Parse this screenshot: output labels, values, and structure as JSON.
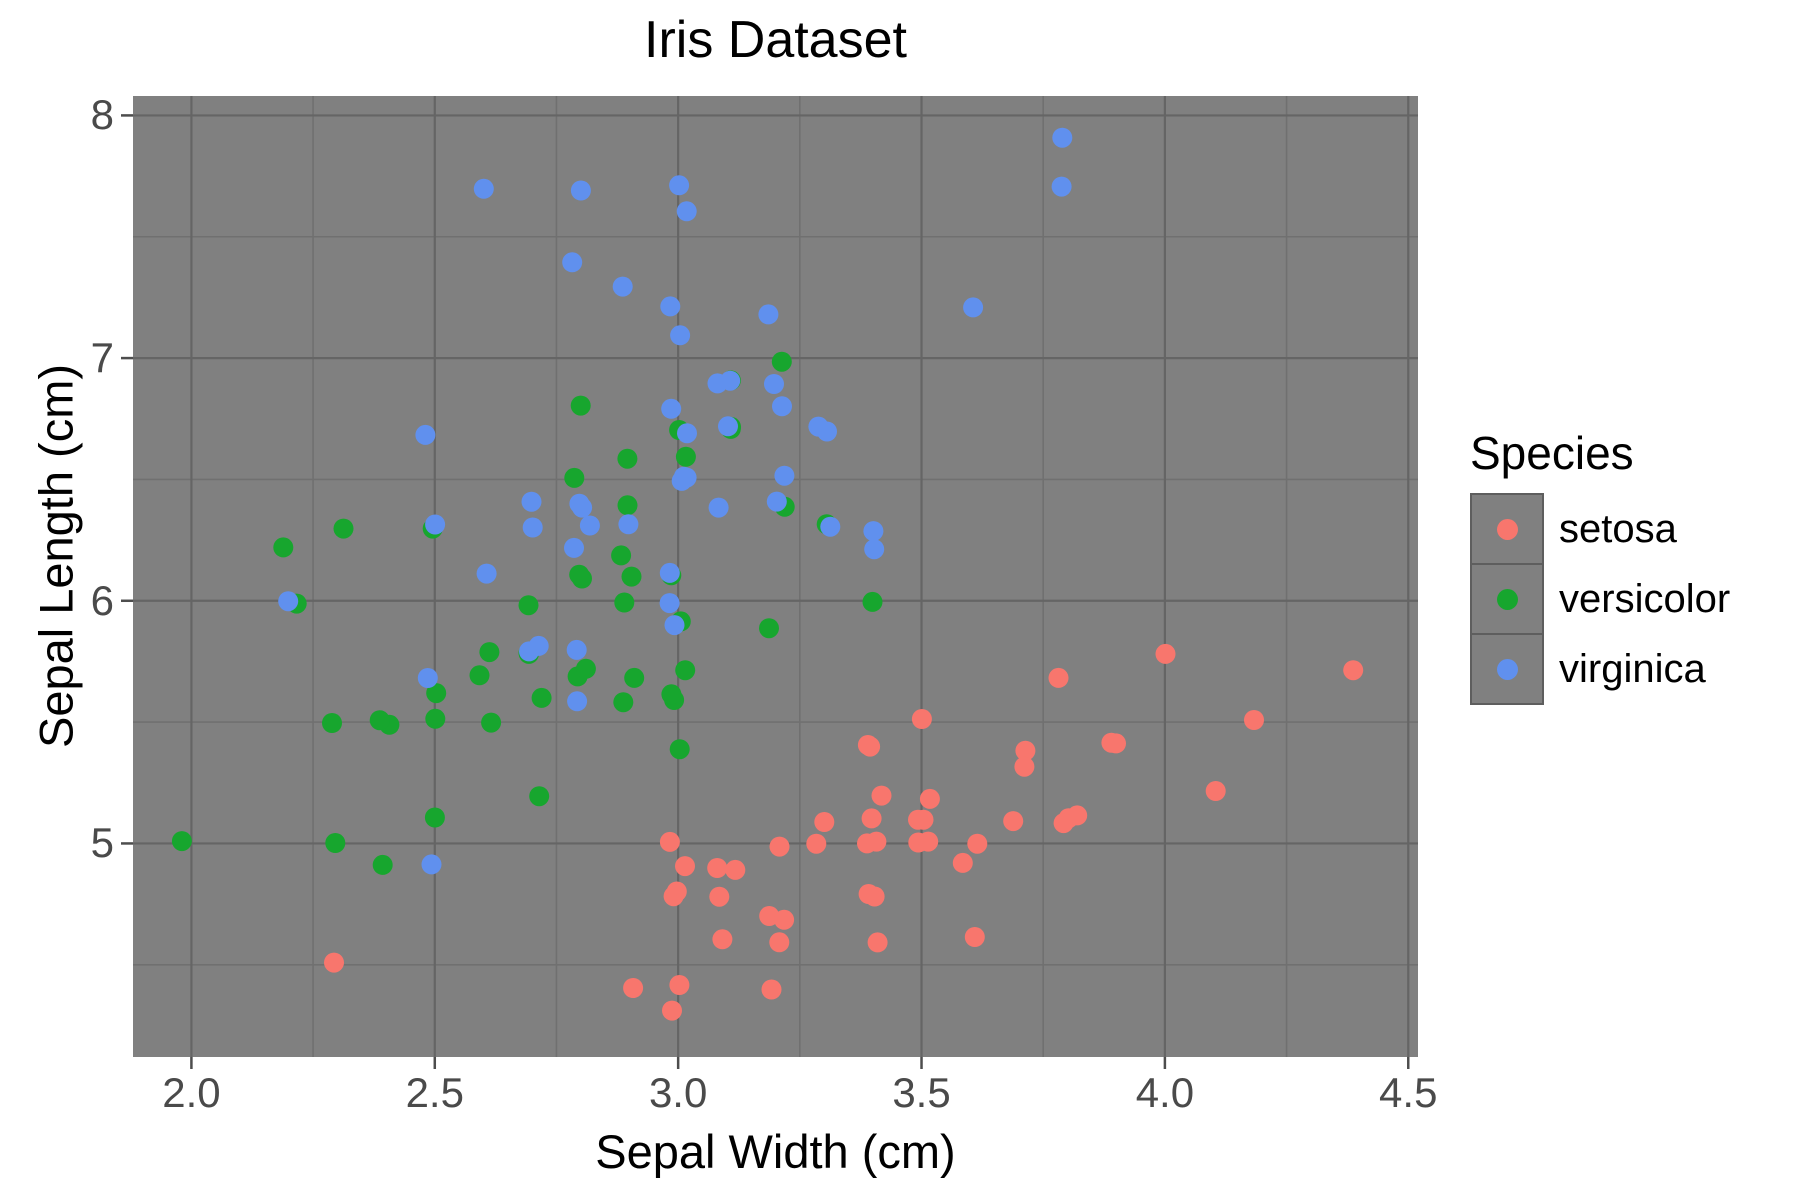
{
  "chart_data": {
    "type": "scatter",
    "title": "Iris Dataset",
    "xlabel": "Sepal Width (cm)",
    "ylabel": "Sepal Length (cm)",
    "xlim": [
      1.88,
      4.52
    ],
    "ylim": [
      4.12,
      8.08
    ],
    "x_ticks": {
      "values": [
        2.0,
        2.5,
        3.0,
        3.5,
        4.0,
        4.5
      ],
      "labels": [
        "2.0",
        "2.5",
        "3.0",
        "3.5",
        "4.0",
        "4.5"
      ]
    },
    "y_ticks": {
      "values": [
        5,
        6,
        7,
        8
      ],
      "labels": [
        "5",
        "6",
        "7",
        "8"
      ]
    },
    "minor_x": [
      2.25,
      2.75,
      3.25,
      3.75,
      4.25
    ],
    "minor_y": [
      4.5,
      5.5,
      6.5,
      7.5
    ],
    "grid": "major+minor",
    "legend": {
      "title": "Species",
      "position": "right"
    },
    "series": [
      {
        "name": "setosa",
        "color": "#F8766D",
        "x": [
          3.5,
          3.0,
          3.2,
          3.1,
          3.6,
          3.9,
          3.4,
          3.4,
          2.9,
          3.1,
          3.7,
          3.4,
          3.0,
          3.0,
          4.0,
          4.4,
          3.9,
          3.5,
          3.8,
          3.8,
          3.4,
          3.7,
          3.6,
          3.3,
          3.4,
          3.0,
          3.4,
          3.5,
          3.4,
          3.2,
          3.1,
          3.4,
          4.1,
          4.2,
          3.1,
          3.2,
          3.5,
          3.6,
          3.0,
          3.4,
          3.5,
          2.3,
          3.2,
          3.5,
          3.8,
          3.0,
          3.8,
          3.2,
          3.7,
          3.3
        ],
        "y": [
          5.1,
          4.9,
          4.7,
          4.6,
          5.0,
          5.4,
          4.6,
          5.0,
          4.4,
          4.9,
          5.4,
          4.8,
          4.8,
          4.3,
          5.8,
          5.7,
          5.4,
          5.1,
          5.7,
          5.1,
          5.4,
          5.1,
          4.6,
          5.1,
          4.8,
          5.0,
          5.0,
          5.2,
          5.2,
          4.7,
          4.8,
          5.4,
          5.2,
          5.5,
          4.9,
          5.0,
          5.5,
          4.9,
          4.4,
          5.1,
          5.0,
          4.5,
          4.4,
          5.0,
          5.1,
          4.8,
          5.1,
          4.6,
          5.3,
          5.0
        ]
      },
      {
        "name": "versicolor",
        "color": "#17A62E",
        "x": [
          3.2,
          3.2,
          3.1,
          2.3,
          2.8,
          2.8,
          3.3,
          2.4,
          2.9,
          2.7,
          2.0,
          3.0,
          2.2,
          2.9,
          2.9,
          3.1,
          3.0,
          2.7,
          2.2,
          2.5,
          3.2,
          2.8,
          2.5,
          2.8,
          2.9,
          3.0,
          2.8,
          3.0,
          2.9,
          2.6,
          2.4,
          2.4,
          2.7,
          2.7,
          3.0,
          3.4,
          3.1,
          2.3,
          3.0,
          2.5,
          2.6,
          3.0,
          2.6,
          2.3,
          2.7,
          3.0,
          2.9,
          2.9,
          2.5,
          2.8
        ],
        "y": [
          7.0,
          6.4,
          6.9,
          5.5,
          6.5,
          5.7,
          6.3,
          4.9,
          6.6,
          5.2,
          5.0,
          5.9,
          6.0,
          6.1,
          5.6,
          6.7,
          5.6,
          5.8,
          6.2,
          5.6,
          5.9,
          6.1,
          6.3,
          6.1,
          6.4,
          6.6,
          6.8,
          6.7,
          6.0,
          5.7,
          5.5,
          5.5,
          5.8,
          6.0,
          5.4,
          6.0,
          6.7,
          6.3,
          5.6,
          5.5,
          5.5,
          6.1,
          5.8,
          5.0,
          5.6,
          5.7,
          5.7,
          6.2,
          5.1,
          5.7
        ]
      },
      {
        "name": "virginica",
        "color": "#6090EE",
        "x": [
          3.3,
          2.7,
          3.0,
          2.9,
          3.0,
          3.0,
          2.5,
          2.9,
          2.5,
          3.6,
          3.2,
          2.7,
          3.0,
          2.5,
          2.8,
          3.2,
          3.0,
          3.8,
          2.6,
          2.2,
          3.2,
          2.8,
          2.8,
          2.7,
          3.3,
          3.2,
          2.8,
          3.0,
          2.8,
          3.0,
          2.8,
          3.8,
          2.8,
          2.8,
          2.6,
          3.0,
          3.4,
          3.1,
          3.0,
          3.1,
          3.1,
          3.1,
          2.7,
          3.2,
          3.3,
          3.0,
          2.5,
          3.0,
          3.4,
          3.0
        ],
        "y": [
          6.3,
          5.8,
          7.1,
          6.3,
          6.5,
          7.6,
          4.9,
          7.3,
          6.7,
          7.2,
          6.5,
          6.4,
          6.8,
          5.7,
          5.8,
          6.4,
          6.5,
          7.7,
          7.7,
          6.0,
          6.9,
          5.6,
          7.7,
          6.3,
          6.7,
          7.2,
          6.2,
          6.1,
          6.4,
          7.2,
          7.4,
          7.9,
          6.4,
          6.3,
          6.1,
          7.7,
          6.3,
          6.4,
          6.0,
          6.9,
          6.7,
          6.9,
          5.8,
          6.8,
          6.7,
          6.7,
          6.3,
          6.5,
          6.2,
          5.9
        ]
      }
    ]
  },
  "colors": {
    "page_bg": "#FFFFFF",
    "panel_bg": "#808080",
    "grid_major": "#656565",
    "grid_minor": "#707070",
    "tick_mark": "#4D4D4D",
    "tick_label": "#4A4A4A",
    "text": "#000000",
    "legend_key_border": "#5E5E5E"
  }
}
